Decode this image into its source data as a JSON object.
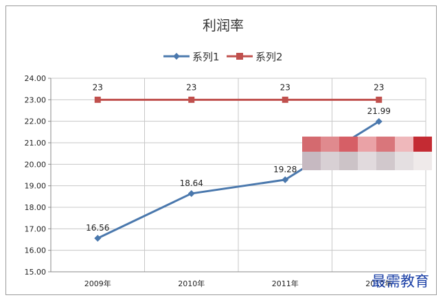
{
  "chart_data": {
    "type": "line",
    "title": "利润率",
    "categories": [
      "2009年",
      "2010年",
      "2011年",
      "2012年"
    ],
    "series": [
      {
        "name": "系列1",
        "values": [
          16.56,
          18.64,
          19.28,
          21.99
        ],
        "labels": [
          "16.56",
          "18.64",
          "19.28",
          "21.99"
        ],
        "color": "#4a78ad"
      },
      {
        "name": "系列2",
        "values": [
          23,
          23,
          23,
          23
        ],
        "labels": [
          "23",
          "23",
          "23",
          "23"
        ],
        "color": "#c0504d"
      }
    ],
    "ylim": [
      15,
      24
    ],
    "y_ticks": [
      "15.00",
      "16.00",
      "17.00",
      "18.00",
      "19.00",
      "20.00",
      "21.00",
      "22.00",
      "23.00",
      "24.00"
    ],
    "grid": true,
    "legend_position": "top"
  },
  "watermark": {
    "text": "最需教育"
  }
}
